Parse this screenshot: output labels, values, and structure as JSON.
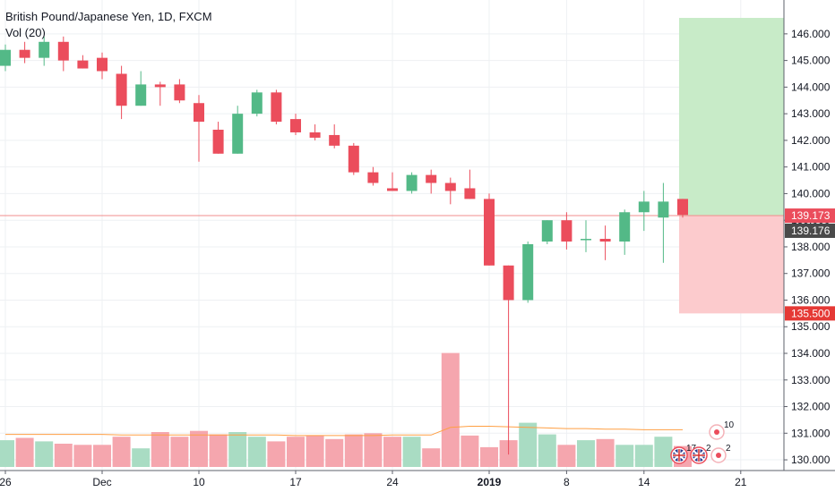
{
  "header": {
    "title": "British Pound/Japanese Yen, 1D, FXCM",
    "indicator": "Vol (20)"
  },
  "colors": {
    "up": "#53b987",
    "down": "#eb4d5c",
    "vol_up": "#a9dcc3",
    "vol_down": "#f5a6ae",
    "profit_zone": "#c8ebc8",
    "loss_zone": "#fccbcd",
    "price_line": "#f28c8c",
    "ma_line": "#ff9f43"
  },
  "price_tags": [
    {
      "label": "139.173",
      "value": 139.173,
      "color": "#eb4d5c"
    },
    {
      "label": "139.176",
      "value": 139.176,
      "color": "#4a4a4a"
    },
    {
      "label": "135.500",
      "value": 135.5,
      "color": "#e53935"
    }
  ],
  "events": [
    {
      "count": "17",
      "icon": "uk-flag-icon"
    },
    {
      "count": "2",
      "icon": "uk-flag-icon"
    },
    {
      "count": "2",
      "icon": "red-dot-icon"
    },
    {
      "count": "10",
      "icon": "red-dot-icon"
    }
  ],
  "chart_data": {
    "type": "candlestick",
    "title": "British Pound/Japanese Yen, 1D, FXCM",
    "y_ticks": [
      130,
      131,
      132,
      133,
      134,
      135,
      136,
      137,
      138,
      139,
      140,
      141,
      142,
      143,
      144,
      145,
      146
    ],
    "y_tick_labels": [
      "130.000",
      "131.000",
      "132.000",
      "133.000",
      "134.000",
      "135.000",
      "136.000",
      "137.000",
      "138.000",
      "139.000",
      "140.000",
      "141.000",
      "142.000",
      "143.000",
      "144.000",
      "145.000",
      "146.000"
    ],
    "ylim": [
      129.8,
      146.6
    ],
    "x_labels": [
      {
        "text": "26",
        "bar": 0
      },
      {
        "text": "Dec",
        "bar": 5
      },
      {
        "text": "10",
        "bar": 10
      },
      {
        "text": "17",
        "bar": 15
      },
      {
        "text": "24",
        "bar": 20
      },
      {
        "text": "2019",
        "bar": 25,
        "bold": true
      },
      {
        "text": "8",
        "bar": 29
      },
      {
        "text": "14",
        "bar": 33
      },
      {
        "text": "21",
        "bar": 38
      }
    ],
    "candles": [
      {
        "o": 144.8,
        "h": 145.6,
        "l": 144.6,
        "c": 145.4
      },
      {
        "o": 145.4,
        "h": 145.7,
        "l": 144.9,
        "c": 145.1
      },
      {
        "o": 145.1,
        "h": 145.9,
        "l": 144.8,
        "c": 145.7
      },
      {
        "o": 145.7,
        "h": 145.9,
        "l": 144.6,
        "c": 145.0
      },
      {
        "o": 145.0,
        "h": 145.2,
        "l": 144.7,
        "c": 144.7
      },
      {
        "o": 145.1,
        "h": 145.3,
        "l": 144.3,
        "c": 144.6
      },
      {
        "o": 144.5,
        "h": 144.8,
        "l": 142.8,
        "c": 143.3
      },
      {
        "o": 143.3,
        "h": 144.6,
        "l": 143.3,
        "c": 144.1
      },
      {
        "o": 144.1,
        "h": 144.2,
        "l": 143.3,
        "c": 144.0
      },
      {
        "o": 144.1,
        "h": 144.3,
        "l": 143.4,
        "c": 143.5
      },
      {
        "o": 143.4,
        "h": 143.7,
        "l": 141.2,
        "c": 142.7
      },
      {
        "o": 142.4,
        "h": 142.7,
        "l": 141.5,
        "c": 141.5
      },
      {
        "o": 141.5,
        "h": 143.3,
        "l": 141.5,
        "c": 143.0
      },
      {
        "o": 143.0,
        "h": 143.9,
        "l": 142.9,
        "c": 143.8
      },
      {
        "o": 143.8,
        "h": 143.9,
        "l": 142.6,
        "c": 142.7
      },
      {
        "o": 142.8,
        "h": 143.0,
        "l": 142.2,
        "c": 142.3
      },
      {
        "o": 142.3,
        "h": 142.6,
        "l": 142.0,
        "c": 142.1
      },
      {
        "o": 142.2,
        "h": 142.6,
        "l": 141.7,
        "c": 141.8
      },
      {
        "o": 141.8,
        "h": 141.9,
        "l": 140.7,
        "c": 140.8
      },
      {
        "o": 140.8,
        "h": 141.0,
        "l": 140.3,
        "c": 140.4
      },
      {
        "o": 140.2,
        "h": 140.8,
        "l": 140.1,
        "c": 140.1
      },
      {
        "o": 140.1,
        "h": 140.8,
        "l": 140.0,
        "c": 140.7
      },
      {
        "o": 140.7,
        "h": 140.9,
        "l": 140.0,
        "c": 140.4
      },
      {
        "o": 140.4,
        "h": 140.6,
        "l": 139.6,
        "c": 140.1
      },
      {
        "o": 140.2,
        "h": 140.9,
        "l": 139.8,
        "c": 139.8
      },
      {
        "o": 139.8,
        "h": 140.0,
        "l": 137.3,
        "c": 137.3
      },
      {
        "o": 137.3,
        "h": 137.3,
        "l": 130.2,
        "c": 136.0
      },
      {
        "o": 136.0,
        "h": 138.2,
        "l": 135.9,
        "c": 138.1
      },
      {
        "o": 138.2,
        "h": 139.0,
        "l": 138.1,
        "c": 139.0
      },
      {
        "o": 139.0,
        "h": 139.3,
        "l": 137.9,
        "c": 138.2
      },
      {
        "o": 138.3,
        "h": 139.0,
        "l": 137.8,
        "c": 138.3
      },
      {
        "o": 138.3,
        "h": 138.8,
        "l": 137.5,
        "c": 138.2
      },
      {
        "o": 138.2,
        "h": 139.4,
        "l": 137.7,
        "c": 139.3
      },
      {
        "o": 139.3,
        "h": 140.1,
        "l": 138.6,
        "c": 139.7
      },
      {
        "o": 139.1,
        "h": 140.4,
        "l": 137.4,
        "c": 139.7
      },
      {
        "o": 139.8,
        "h": 139.8,
        "l": 139.1,
        "c": 139.2
      }
    ],
    "volume_max": 10,
    "volumes": [
      2.3,
      2.5,
      2.2,
      2.0,
      1.9,
      1.9,
      2.6,
      1.6,
      3.0,
      2.6,
      3.1,
      2.8,
      3.0,
      2.6,
      2.2,
      2.6,
      2.7,
      2.4,
      2.8,
      2.9,
      2.6,
      2.6,
      1.6,
      9.8,
      2.7,
      1.7,
      2.3,
      3.8,
      2.8,
      1.9,
      2.3,
      2.4,
      1.9,
      1.9,
      2.6,
      1.8
    ],
    "vol_ma": [
      2.8,
      2.8,
      2.8,
      2.8,
      2.8,
      2.8,
      2.75,
      2.75,
      2.75,
      2.75,
      2.75,
      2.75,
      2.75,
      2.75,
      2.75,
      2.7,
      2.7,
      2.7,
      2.7,
      2.7,
      2.75,
      2.75,
      2.75,
      3.4,
      3.5,
      3.5,
      3.45,
      3.4,
      3.35,
      3.3,
      3.3,
      3.25,
      3.25,
      3.2,
      3.2,
      3.2
    ],
    "last_price": 139.173,
    "bid_line": 139.176,
    "position": {
      "type": "long",
      "entry": 139.173,
      "target": 146.6,
      "stop": 135.5
    }
  }
}
